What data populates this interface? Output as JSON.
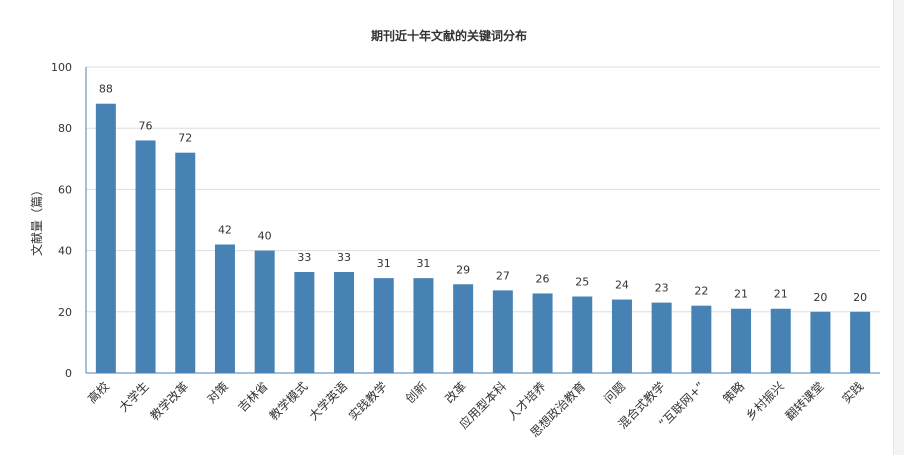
{
  "chart_data": {
    "type": "bar",
    "title": "期刊近十年文献的关键词分布",
    "xlabel": "",
    "ylabel": "文献量（篇）",
    "ylim": [
      0,
      100
    ],
    "yticks": [
      0,
      20,
      40,
      60,
      80,
      100
    ],
    "grid": true,
    "legend": "none",
    "categories": [
      "高校",
      "大学生",
      "教学改革",
      "对策",
      "吉林省",
      "教学模式",
      "大学英语",
      "实践教学",
      "创新",
      "改革",
      "应用型本科",
      "人才培养",
      "思想政治教育",
      "问题",
      "混合式教学",
      "“互联网+”",
      "策略",
      "乡村振兴",
      "翻转课堂",
      "实践"
    ],
    "values": [
      88,
      76,
      72,
      42,
      40,
      33,
      33,
      31,
      31,
      29,
      27,
      26,
      25,
      24,
      23,
      22,
      21,
      21,
      20,
      20
    ],
    "colors": {
      "bar": "#4682b4",
      "axis": "#4682b4",
      "grid": "#dddddd",
      "text": "#333333"
    }
  }
}
